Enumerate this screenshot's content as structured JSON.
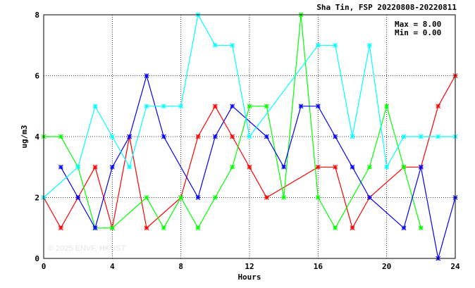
{
  "chart_data": {
    "type": "line",
    "title": "Sha Tin, FSP 20220808-20220811",
    "xlabel": "Hours",
    "ylabel": "ug/m3",
    "xlim": [
      0,
      24
    ],
    "ylim": [
      0,
      8
    ],
    "xticks": [
      "0",
      "4",
      "8",
      "12",
      "16",
      "20",
      "24"
    ],
    "yticks": [
      "0",
      "2",
      "4",
      "6",
      "8"
    ],
    "grid": true,
    "annotations": [
      "Max = 8.00",
      "Min = 0.00"
    ],
    "watermark": "© 2025 ENVF, HKUST",
    "series": [
      {
        "color": "#ff0000",
        "x": [
          0,
          1,
          2,
          3,
          4,
          5,
          6,
          7,
          8,
          9,
          10,
          11,
          12,
          13,
          14,
          15,
          16,
          17,
          18,
          19,
          20,
          21,
          22,
          23,
          24
        ],
        "y": [
          2,
          1,
          2,
          3,
          1,
          4,
          1,
          null,
          2,
          4,
          5,
          4,
          3,
          2,
          null,
          null,
          3,
          3,
          1,
          2,
          null,
          3,
          3,
          5,
          6
        ]
      },
      {
        "color": "#00ff00",
        "x": [
          0,
          1,
          2,
          3,
          4,
          5,
          6,
          7,
          8,
          9,
          10,
          11,
          12,
          13,
          14,
          15,
          16,
          17,
          18,
          19,
          20,
          21,
          22,
          23,
          24
        ],
        "y": [
          4,
          4,
          3,
          1,
          1,
          null,
          2,
          1,
          2,
          1,
          2,
          3,
          5,
          5,
          2,
          8,
          2,
          1,
          null,
          3,
          5,
          3,
          1,
          null,
          null
        ]
      },
      {
        "color": "#0000ff",
        "x": [
          0,
          1,
          2,
          3,
          4,
          5,
          6,
          7,
          8,
          9,
          10,
          11,
          12,
          13,
          14,
          15,
          16,
          17,
          18,
          19,
          20,
          21,
          22,
          23,
          24
        ],
        "y": [
          null,
          3,
          2,
          1,
          3,
          4,
          6,
          4,
          null,
          2,
          4,
          5,
          null,
          4,
          3,
          5,
          5,
          4,
          3,
          2,
          null,
          1,
          3,
          0,
          2
        ]
      },
      {
        "color": "#00ffff",
        "x": [
          0,
          1,
          2,
          3,
          4,
          5,
          6,
          7,
          8,
          9,
          10,
          11,
          12,
          13,
          14,
          15,
          16,
          17,
          18,
          19,
          20,
          21,
          22,
          23,
          24
        ],
        "y": [
          2,
          null,
          3,
          5,
          4,
          3,
          5,
          5,
          5,
          8,
          7,
          7,
          4,
          null,
          null,
          null,
          7,
          7,
          4,
          7,
          3,
          4,
          4,
          4,
          4
        ]
      }
    ]
  }
}
